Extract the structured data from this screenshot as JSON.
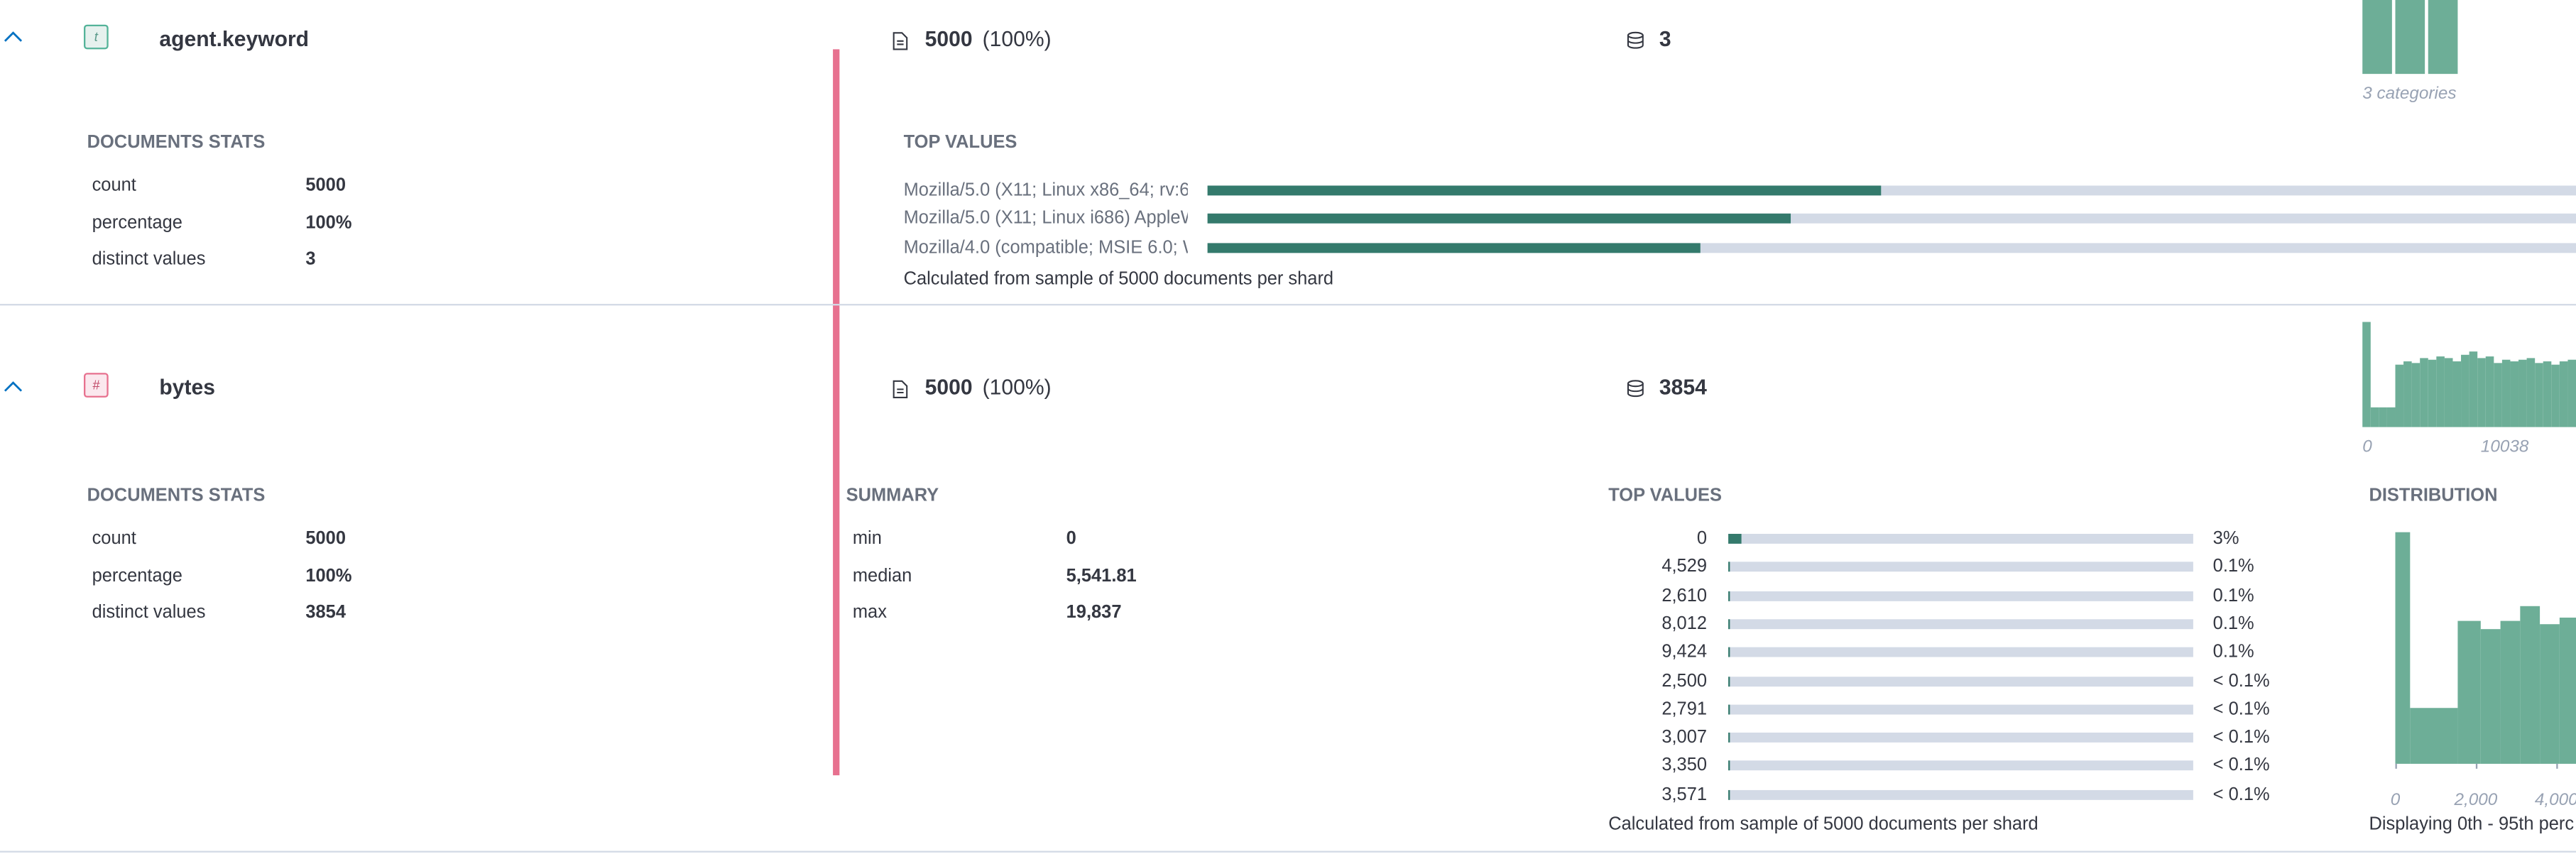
{
  "fields": [
    {
      "type_icon": "t",
      "name": "agent.keyword",
      "doc_count": "5000",
      "doc_percent": "(100%)",
      "distinct_count": "3",
      "mini_chart": {
        "type": "bar",
        "values": [
          100,
          100,
          96
        ],
        "ylim": [
          0,
          100
        ],
        "color": "#6dae97",
        "caption": "3 categories"
      },
      "documents_stats": {
        "title": "DOCUMENTS STATS",
        "rows": [
          [
            "count",
            "5000"
          ],
          [
            "percentage",
            "100%"
          ],
          [
            "distinct values",
            "3"
          ]
        ]
      },
      "top_values": {
        "title": "TOP VALUES",
        "xlim": [
          0,
          100
        ],
        "color": "#347a6c",
        "categories": [
          "Mozilla/5.0 (X11; Linux x86_64; rv:6.",
          "Mozilla/5.0 (X11; Linux i686) AppleW",
          "Mozilla/4.0 (compatible; MSIE 6.0; W"
        ],
        "values": [
          41,
          35.5,
          30
        ],
        "note": "Calculated from sample of 5000 documents per shard"
      }
    },
    {
      "type_icon": "#",
      "name": "bytes",
      "doc_count": "5000",
      "doc_percent": "(100%)",
      "distinct_count": "3854",
      "mini_chart": {
        "type": "bar",
        "values": [
          64,
          12,
          12,
          12,
          38,
          40,
          39,
          42,
          41,
          43,
          42,
          40,
          44,
          46,
          42,
          43,
          39,
          41,
          40,
          41,
          42,
          39,
          40,
          38,
          40,
          41
        ],
        "ylim": [
          0,
          64
        ],
        "color": "#6dae97",
        "axis_labels": [
          "0",
          "10038"
        ]
      },
      "documents_stats": {
        "title": "DOCUMENTS STATS",
        "rows": [
          [
            "count",
            "5000"
          ],
          [
            "percentage",
            "100%"
          ],
          [
            "distinct values",
            "3854"
          ]
        ]
      },
      "summary": {
        "title": "SUMMARY",
        "rows": [
          [
            "min",
            "0"
          ],
          [
            "median",
            "5,541.81"
          ],
          [
            "max",
            "19,837"
          ]
        ]
      },
      "top_values": {
        "title": "TOP VALUES",
        "xlim": [
          0,
          100
        ],
        "color": "#347a6c",
        "categories": [
          "0",
          "4,529",
          "2,610",
          "8,012",
          "9,424",
          "2,500",
          "2,791",
          "3,007",
          "3,350",
          "3,571"
        ],
        "values": [
          3,
          0.1,
          0.1,
          0.1,
          0.1,
          0.06,
          0.06,
          0.06,
          0.06,
          0.06
        ],
        "value_labels": [
          "3%",
          "0.1%",
          "0.1%",
          "0.1%",
          "0.1%",
          "< 0.1%",
          "< 0.1%",
          "< 0.1%",
          "< 0.1%",
          "< 0.1%"
        ],
        "note": "Calculated from sample of 5000 documents per shard"
      },
      "distribution": {
        "title": "DISTRIBUTION",
        "type": "histogram",
        "color": "#6dae97",
        "bins": [
          0,
          370,
          1550,
          2120,
          2610,
          3100,
          3590,
          4080,
          4570
        ],
        "values": [
          141,
          34,
          87,
          82,
          87,
          96,
          85,
          89
        ],
        "ylim": [
          0,
          145
        ],
        "xlim": [
          0,
          4570
        ],
        "xticks": [
          0,
          {
            "value": 2000,
            "label": "2,000"
          },
          {
            "value": 4000,
            "label": "4,000"
          }
        ],
        "caption": "Displaying 0th - 95th perc"
      }
    }
  ]
}
